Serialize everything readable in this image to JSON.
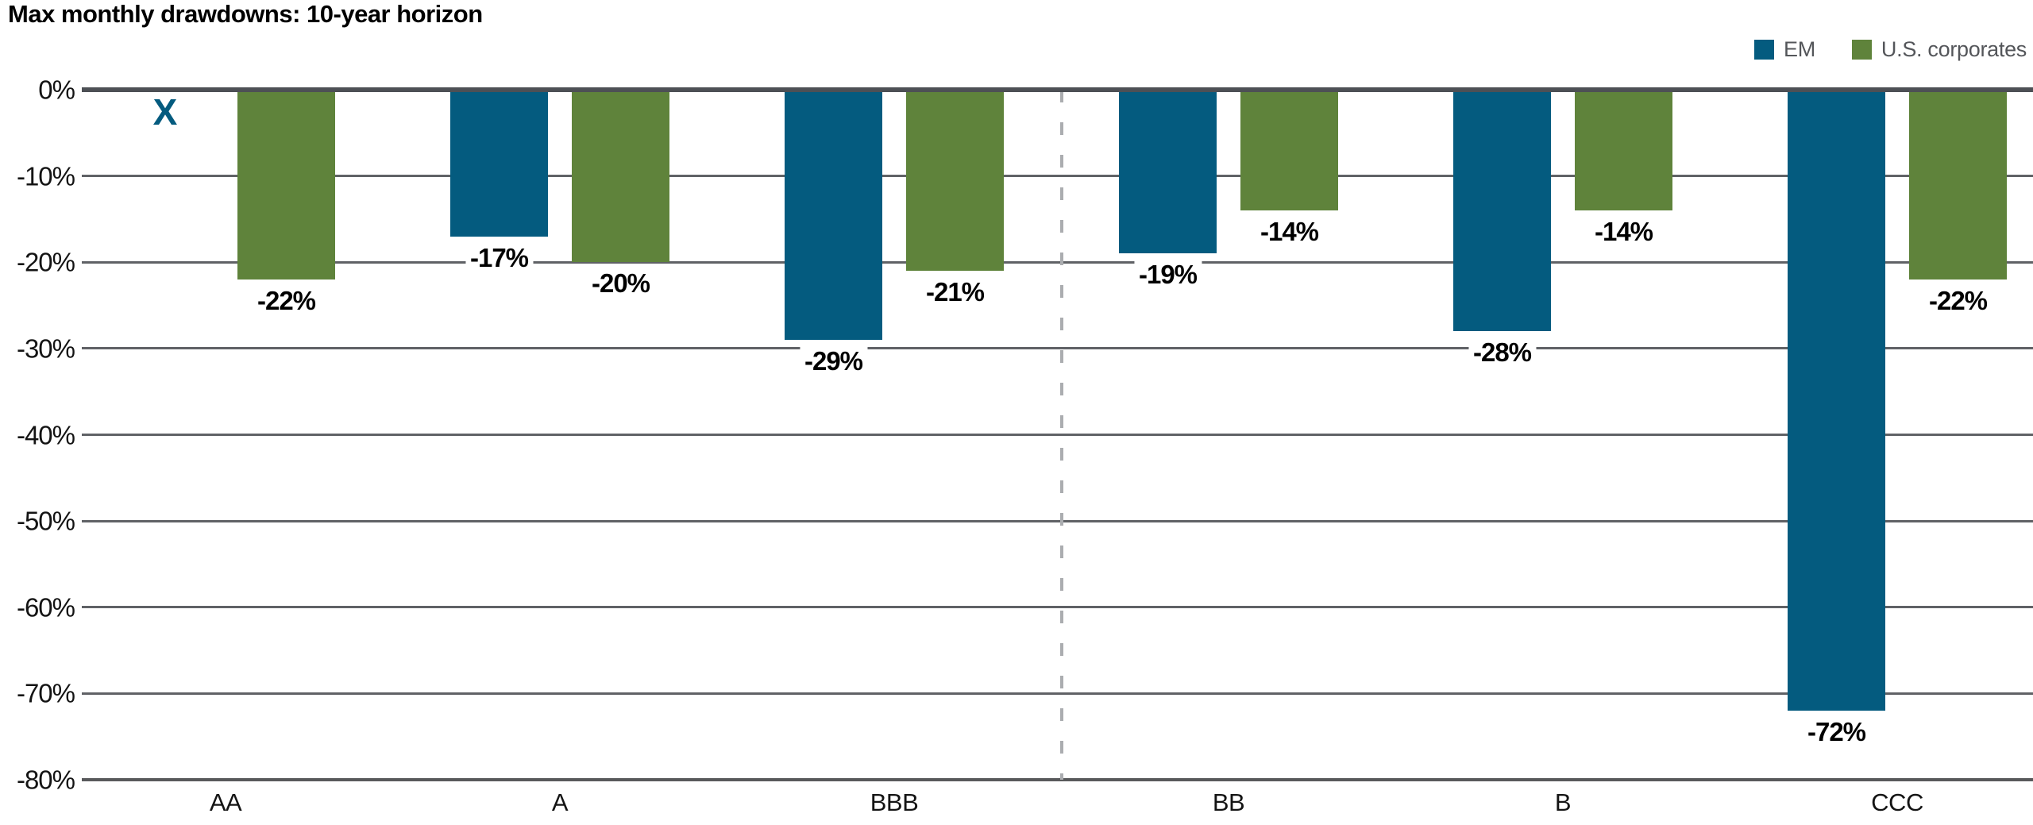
{
  "title": "Max monthly drawdowns: 10-year horizon",
  "legend": {
    "items": [
      {
        "label": "EM",
        "color": "#045B7F",
        "swatch": "em-swatch"
      },
      {
        "label": "U.S. corporates",
        "color": "#5F833B",
        "swatch": "us-corporates-swatch"
      }
    ]
  },
  "axis": {
    "y_ticks": [
      "0%",
      "-10%",
      "-20%",
      "-30%",
      "-40%",
      "-50%",
      "-60%",
      "-70%",
      "-80%"
    ],
    "x_labels": [
      "AA",
      "A",
      "BBB",
      "BB",
      "B",
      "CCC"
    ]
  },
  "chart_data": {
    "type": "bar",
    "title": "Max monthly drawdowns: 10-year horizon",
    "categories": [
      "AA",
      "A",
      "BBB",
      "BB",
      "B",
      "CCC"
    ],
    "series": [
      {
        "name": "EM",
        "color": "#045B7F",
        "values": [
          null,
          -17,
          -29,
          -19,
          -28,
          -72
        ],
        "labels": [
          "X",
          "-17%",
          "-29%",
          "-19%",
          "-28%",
          "-72%"
        ]
      },
      {
        "name": "U.S. corporates",
        "color": "#5F833B",
        "values": [
          -22,
          -20,
          -21,
          -14,
          -14,
          -22
        ],
        "labels": [
          "-22%",
          "-20%",
          "-21%",
          "-14%",
          "-14%",
          "-22%"
        ]
      }
    ],
    "xlabel": "",
    "ylabel": "",
    "ylim": [
      -80,
      0
    ],
    "grid": "horizontal",
    "legend_position": "top-right",
    "missing_data_marker": "X",
    "separator_after_category": "BBB"
  },
  "colors": {
    "em": "#045B7F",
    "us_corporates": "#5F833B",
    "grid_line": "#606266",
    "zero_line": "#4D5055",
    "dashed_separator": "#ABADB0",
    "axis_text": "#141414",
    "legend_text": "#54565A",
    "data_label_text": "#000000"
  }
}
